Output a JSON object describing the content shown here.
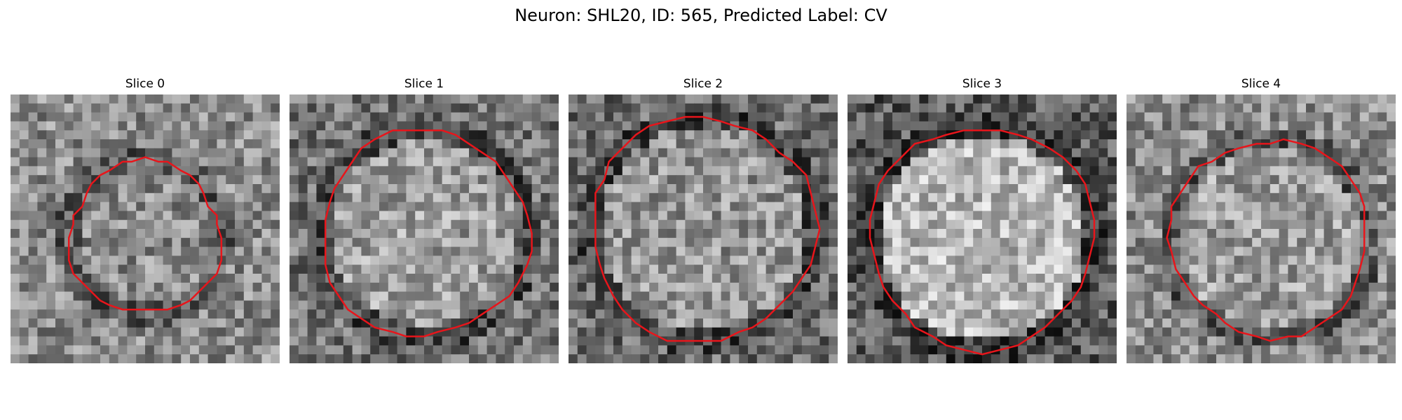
{
  "figure": {
    "title": "Neuron: SHL20, ID: 565, Predicted Label: CV",
    "contour_color": "#e8151b",
    "grid_size": 30,
    "panels": [
      {
        "title": "Slice 0",
        "center": [
          15,
          16
        ],
        "radius": 8.5,
        "brightness": 0.55,
        "outside": 0.55
      },
      {
        "title": "Slice 1",
        "center": [
          15,
          15.5
        ],
        "radius": 11.5,
        "brightness": 0.62,
        "outside": 0.45
      },
      {
        "title": "Slice 2",
        "center": [
          15,
          15
        ],
        "radius": 12.5,
        "brightness": 0.58,
        "outside": 0.42
      },
      {
        "title": "Slice 3",
        "center": [
          15,
          16
        ],
        "radius": 12.5,
        "brightness": 0.72,
        "outside": 0.35
      },
      {
        "title": "Slice 4",
        "center": [
          16,
          16
        ],
        "radius": 11,
        "brightness": 0.62,
        "outside": 0.55
      }
    ]
  }
}
